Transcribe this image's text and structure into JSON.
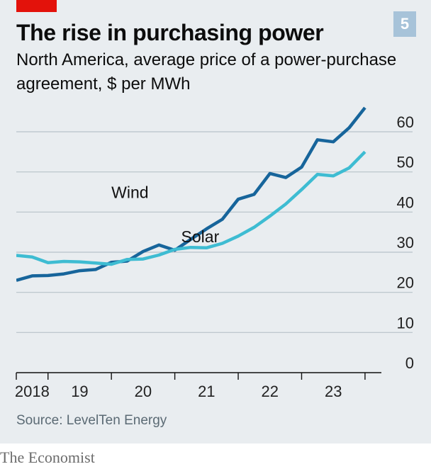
{
  "header": {
    "title": "The rise in purchasing power",
    "badge": "5",
    "subtitle": "North America, average price of a power-purchase agreement, $ per MWh"
  },
  "footer": {
    "source": "Source: LevelTen Energy",
    "brand": "The Economist"
  },
  "colors": {
    "wind": "#17659b",
    "solar": "#3ebcd2",
    "grid": "#b8c2c9",
    "accent": "#e3120b"
  },
  "chart_data": {
    "type": "line",
    "title": "The rise in purchasing power",
    "ylabel": "$ per MWh",
    "ylim": [
      0,
      60
    ],
    "yticks": [
      0,
      10,
      20,
      30,
      40,
      50,
      60
    ],
    "y_axis_side": "right",
    "grid": true,
    "xlim": [
      2018.0,
      2024.25
    ],
    "x_labels": [
      {
        "label": "2018",
        "x": 2018.25
      },
      {
        "label": "19",
        "x": 2019.0
      },
      {
        "label": "20",
        "x": 2020.0
      },
      {
        "label": "21",
        "x": 2021.0
      },
      {
        "label": "22",
        "x": 2022.0
      },
      {
        "label": "23",
        "x": 2023.0
      }
    ],
    "x_ticks": [
      2018.0,
      2018.5,
      2019.5,
      2020.5,
      2021.5,
      2022.5,
      2023.5
    ],
    "x": [
      2018.0,
      2018.25,
      2018.5,
      2018.75,
      2019.0,
      2019.25,
      2019.5,
      2019.75,
      2020.0,
      2020.25,
      2020.5,
      2020.75,
      2021.0,
      2021.25,
      2021.5,
      2021.75,
      2022.0,
      2022.25,
      2022.5,
      2022.75,
      2023.0,
      2023.25,
      2023.5
    ],
    "series": [
      {
        "name": "Wind",
        "color_key": "wind",
        "label_at": [
          2019.5,
          43.5
        ],
        "values": [
          23.0,
          24.1,
          24.2,
          24.6,
          25.4,
          25.7,
          27.5,
          27.8,
          30.2,
          31.8,
          30.5,
          33.2,
          35.8,
          38.2,
          43.2,
          44.4,
          49.6,
          48.6,
          51.2,
          58.0,
          57.5,
          61.0,
          66.0
        ]
      },
      {
        "name": "Solar",
        "color_key": "solar",
        "label_at": [
          2020.6,
          32.5
        ],
        "values": [
          29.2,
          28.8,
          27.4,
          27.7,
          27.6,
          27.3,
          27.0,
          28.2,
          28.3,
          29.3,
          30.7,
          31.2,
          31.1,
          32.2,
          34.0,
          36.2,
          39.0,
          42.0,
          45.6,
          49.4,
          49.0,
          51.0,
          55.0
        ]
      }
    ]
  }
}
